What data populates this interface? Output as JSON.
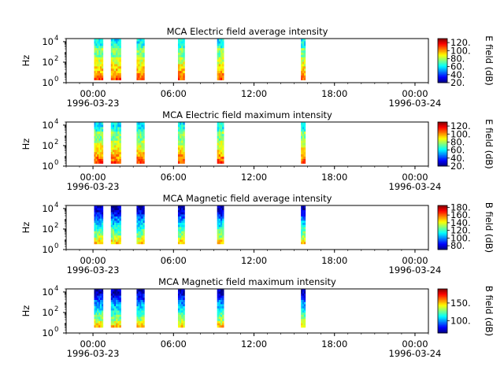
{
  "chart_data": [
    {
      "type": "heatmap",
      "title": "MCA  Electric field average intensity",
      "ylabel": "Hz",
      "yscale": "log",
      "ylim": [
        1,
        20000
      ],
      "yticks": [
        "10",
        "10",
        "10"
      ],
      "ytick_exponents": [
        "0",
        "2",
        "4"
      ],
      "xlim": [
        "1996-03-22 22:00",
        "1996-03-24 01:00"
      ],
      "xticks": [
        "00:00",
        "06:00",
        "12:00",
        "18:00",
        "00:00"
      ],
      "xdate_labels": [
        "1996-03-23",
        "1996-03-24"
      ],
      "colorbar": {
        "label": "E field (dB)",
        "range": [
          20,
          130
        ],
        "ticks": [
          "20.",
          "40.",
          "60.",
          "80.",
          "100.",
          "120."
        ]
      },
      "segments": [
        {
          "start": "1996-03-23 00:05",
          "end": "1996-03-23 00:45"
        },
        {
          "start": "1996-03-23 01:20",
          "end": "1996-03-23 02:05"
        },
        {
          "start": "1996-03-23 03:15",
          "end": "1996-03-23 03:50"
        },
        {
          "start": "1996-03-23 06:20",
          "end": "1996-03-23 06:50"
        },
        {
          "start": "1996-03-23 09:15",
          "end": "1996-03-23 09:45"
        },
        {
          "start": "1996-03-23 15:30",
          "end": "1996-03-23 15:50"
        }
      ],
      "profile": "electric"
    },
    {
      "type": "heatmap",
      "title": "MCA  Electric field maximum intensity",
      "ylabel": "Hz",
      "yscale": "log",
      "ylim": [
        1,
        20000
      ],
      "yticks": [
        "10",
        "10",
        "10"
      ],
      "ytick_exponents": [
        "0",
        "2",
        "4"
      ],
      "xlim": [
        "1996-03-22 22:00",
        "1996-03-24 01:00"
      ],
      "xticks": [
        "00:00",
        "06:00",
        "12:00",
        "18:00",
        "00:00"
      ],
      "xdate_labels": [
        "1996-03-23",
        "1996-03-24"
      ],
      "colorbar": {
        "label": "E field (dB)",
        "range": [
          20,
          130
        ],
        "ticks": [
          "20.",
          "40.",
          "60.",
          "80.",
          "100.",
          "120."
        ]
      },
      "segments": [
        {
          "start": "1996-03-23 00:05",
          "end": "1996-03-23 00:45"
        },
        {
          "start": "1996-03-23 01:20",
          "end": "1996-03-23 02:05"
        },
        {
          "start": "1996-03-23 03:15",
          "end": "1996-03-23 03:50"
        },
        {
          "start": "1996-03-23 06:20",
          "end": "1996-03-23 06:50"
        },
        {
          "start": "1996-03-23 09:15",
          "end": "1996-03-23 09:45"
        },
        {
          "start": "1996-03-23 15:30",
          "end": "1996-03-23 15:50"
        }
      ],
      "profile": "electric"
    },
    {
      "type": "heatmap",
      "title": "MCA  Magnetic field average intensity",
      "ylabel": "Hz",
      "yscale": "log",
      "ylim": [
        1,
        20000
      ],
      "yticks": [
        "10",
        "10",
        "10"
      ],
      "ytick_exponents": [
        "0",
        "2",
        "4"
      ],
      "xlim": [
        "1996-03-22 22:00",
        "1996-03-24 01:00"
      ],
      "xticks": [
        "00:00",
        "06:00",
        "12:00",
        "18:00",
        "00:00"
      ],
      "xdate_labels": [
        "1996-03-23",
        "1996-03-24"
      ],
      "colorbar": {
        "label": "B field (dB)",
        "range": [
          70,
          185
        ],
        "ticks": [
          "80.",
          "100.",
          "120.",
          "140.",
          "160.",
          "180."
        ]
      },
      "segments": [
        {
          "start": "1996-03-23 00:05",
          "end": "1996-03-23 00:45"
        },
        {
          "start": "1996-03-23 01:20",
          "end": "1996-03-23 02:05"
        },
        {
          "start": "1996-03-23 03:15",
          "end": "1996-03-23 03:50"
        },
        {
          "start": "1996-03-23 06:20",
          "end": "1996-03-23 06:50"
        },
        {
          "start": "1996-03-23 09:15",
          "end": "1996-03-23 09:45"
        },
        {
          "start": "1996-03-23 15:30",
          "end": "1996-03-23 15:50"
        }
      ],
      "profile": "magnetic"
    },
    {
      "type": "heatmap",
      "title": "MCA  Magnetic field maximum intensity",
      "ylabel": "Hz",
      "yscale": "log",
      "ylim": [
        1,
        20000
      ],
      "yticks": [
        "10",
        "10",
        "10"
      ],
      "ytick_exponents": [
        "0",
        "2",
        "4"
      ],
      "xlim": [
        "1996-03-22 22:00",
        "1996-03-24 01:00"
      ],
      "xticks": [
        "00:00",
        "06:00",
        "12:00",
        "18:00",
        "00:00"
      ],
      "xdate_labels": [
        "1996-03-23",
        "1996-03-24"
      ],
      "colorbar": {
        "label": "B field (dB)",
        "range": [
          65,
          190
        ],
        "ticks": [
          "100.",
          "150."
        ]
      },
      "segments": [
        {
          "start": "1996-03-23 00:05",
          "end": "1996-03-23 00:45"
        },
        {
          "start": "1996-03-23 01:20",
          "end": "1996-03-23 02:05"
        },
        {
          "start": "1996-03-23 03:15",
          "end": "1996-03-23 03:50"
        },
        {
          "start": "1996-03-23 06:20",
          "end": "1996-03-23 06:50"
        },
        {
          "start": "1996-03-23 09:15",
          "end": "1996-03-23 09:45"
        },
        {
          "start": "1996-03-23 15:30",
          "end": "1996-03-23 15:50"
        }
      ],
      "profile": "magnetic"
    }
  ]
}
